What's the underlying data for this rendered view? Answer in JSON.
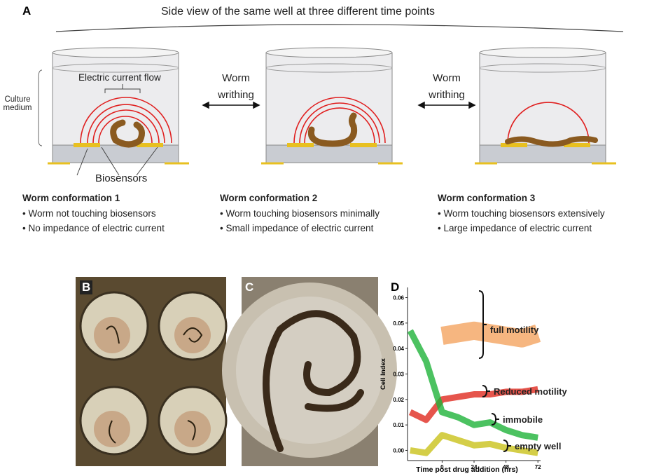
{
  "panels": {
    "a": "A",
    "b": "B",
    "c": "C",
    "d": "D"
  },
  "panel_a": {
    "title": "Side view of the same well at three different time points",
    "current_label": "Electric current flow",
    "medium_label": "Culture medium",
    "sensor_label": "Biosensors",
    "transition_1": "Worm writhing",
    "transition_2": "Worm writhing",
    "conformations": [
      {
        "title": "Worm conformation 1",
        "points": [
          "• Worm not touching biosensors",
          "• No impedance of electric current"
        ]
      },
      {
        "title": "Worm conformation 2",
        "points": [
          "• Worm touching biosensors minimally",
          "• Small impedance of electric current"
        ]
      },
      {
        "title": "Worm conformation 3",
        "points": [
          "• Worm touching biosensors extensively",
          "• Large impedance of electric current"
        ]
      }
    ]
  },
  "chart_data": {
    "type": "line",
    "x_label": "Time post drug addition (hrs)",
    "y_label": "Cell Index",
    "x": [
      -24,
      -12,
      0,
      12,
      24,
      36,
      48,
      60,
      72
    ],
    "series": [
      {
        "name": "full motility",
        "color": "#f4a460",
        "values": [
          null,
          null,
          0.045,
          0.046,
          0.047,
          0.046,
          0.045,
          0.044,
          0.046
        ]
      },
      {
        "name": "Reduced motility",
        "color": "#e02b1f",
        "values": [
          0.015,
          0.012,
          0.02,
          0.021,
          0.022,
          0.022,
          0.023,
          0.023,
          0.024
        ]
      },
      {
        "name": "immobile",
        "color": "#1fb33a",
        "values": [
          0.047,
          0.035,
          0.015,
          0.013,
          0.01,
          0.011,
          0.008,
          0.006,
          0.005
        ]
      },
      {
        "name": "empty well",
        "color": "#c9c21a",
        "values": [
          0.0,
          -0.001,
          0.006,
          0.004,
          0.002,
          0.0025,
          0.001,
          0.0,
          -0.001
        ]
      }
    ],
    "xlim": [
      -26,
      74
    ],
    "ylim": [
      -0.004,
      0.064
    ],
    "xticks": [
      0,
      24,
      48,
      72
    ],
    "yticks": [
      {
        "value": 0,
        "label": "0.00"
      },
      0.01,
      0.02,
      0.03,
      0.04,
      0.05,
      0.06
    ]
  }
}
